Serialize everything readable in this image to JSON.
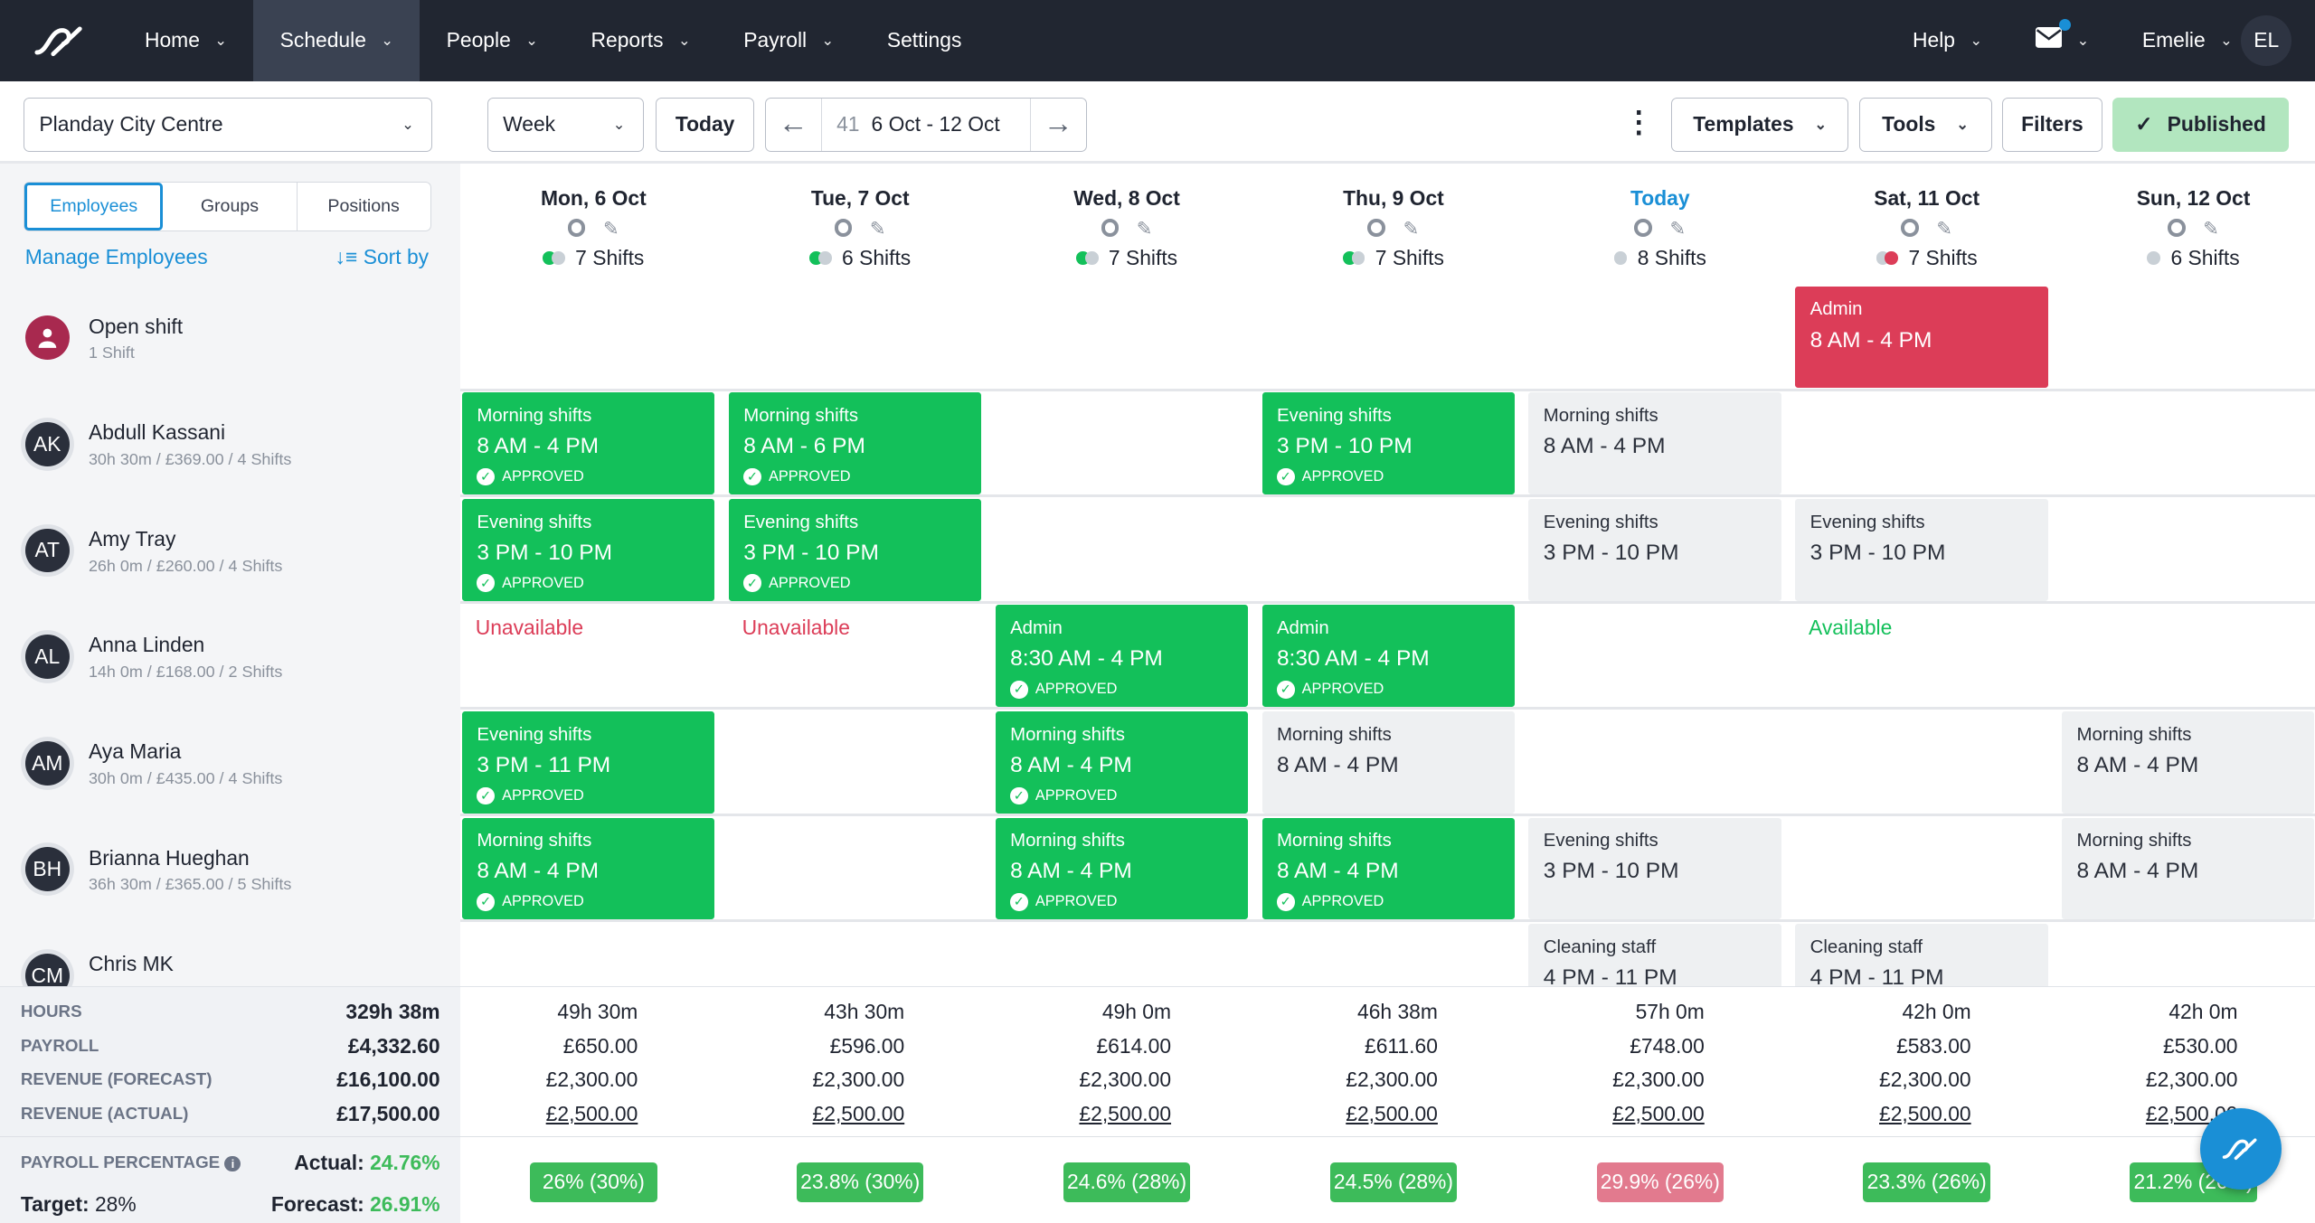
{
  "nav": {
    "items": [
      {
        "label": "Home"
      },
      {
        "label": "Schedule",
        "active": true
      },
      {
        "label": "People"
      },
      {
        "label": "Reports"
      },
      {
        "label": "Payroll"
      },
      {
        "label": "Settings"
      }
    ],
    "help": "Help",
    "user": "Emelie",
    "initials": "EL"
  },
  "toolbar": {
    "location": "Planday City Centre",
    "view": "Week",
    "today": "Today",
    "week_number": "41",
    "range": "6 Oct - 12 Oct",
    "templates": "Templates",
    "tools": "Tools",
    "filters": "Filters",
    "published": "Published"
  },
  "sidebar": {
    "tabs": [
      "Employees",
      "Groups",
      "Positions"
    ],
    "manage": "Manage Employees",
    "sort": "Sort by"
  },
  "colors": {
    "approved": "#13c05a",
    "open": "#dc3d58",
    "accent": "#1a8fd6",
    "nav": "#212631",
    "published": "#b2e6bf"
  },
  "days": [
    {
      "label": "Mon, 6 Oct",
      "shifts": "7 Shifts",
      "dots": [
        "#13c05a",
        "#c9d0d6"
      ]
    },
    {
      "label": "Tue, 7 Oct",
      "shifts": "6 Shifts",
      "dots": [
        "#13c05a",
        "#c9d0d6"
      ]
    },
    {
      "label": "Wed, 8 Oct",
      "shifts": "7 Shifts",
      "dots": [
        "#13c05a",
        "#c9d0d6"
      ]
    },
    {
      "label": "Thu, 9 Oct",
      "shifts": "7 Shifts",
      "dots": [
        "#13c05a",
        "#c9d0d6"
      ]
    },
    {
      "label": "Today",
      "shifts": "8 Shifts",
      "dots": [
        "#c9d0d6"
      ],
      "today": true
    },
    {
      "label": "Sat, 11 Oct",
      "shifts": "7 Shifts",
      "dots": [
        "#c9d0d6",
        "#dc3d58"
      ]
    },
    {
      "label": "Sun, 12 Oct",
      "shifts": "6 Shifts",
      "dots": [
        "#c9d0d6"
      ]
    }
  ],
  "approved_label": "APPROVED",
  "rows": [
    {
      "name": "Open shift",
      "sub": "1 Shift",
      "open": true,
      "cells": [
        null,
        null,
        null,
        null,
        null,
        {
          "type": "red",
          "title": "Admin",
          "time": "8 AM  - 4 PM"
        },
        null
      ]
    },
    {
      "name": "Abdull Kassani",
      "initials": "AK",
      "sub": "30h 30m / £369.00 / 4 Shifts",
      "cells": [
        {
          "type": "approved",
          "title": "Morning shifts",
          "time": "8 AM  - 4 PM"
        },
        {
          "type": "approved",
          "title": "Morning shifts",
          "time": "8 AM  - 6 PM"
        },
        null,
        {
          "type": "approved",
          "title": "Evening shifts",
          "time": "3 PM  - 10 PM"
        },
        {
          "type": "plain",
          "title": "Morning shifts",
          "time": "8 AM  - 4 PM"
        },
        null,
        null
      ]
    },
    {
      "name": "Amy Tray",
      "initials": "AT",
      "sub": "26h 0m / £260.00 / 4 Shifts",
      "cells": [
        {
          "type": "approved",
          "title": "Evening shifts",
          "time": "3 PM  - 10 PM"
        },
        {
          "type": "approved",
          "title": "Evening shifts",
          "time": "3 PM  - 10 PM"
        },
        null,
        null,
        {
          "type": "plain",
          "title": "Evening shifts",
          "time": "3 PM  - 10 PM"
        },
        {
          "type": "plain",
          "title": "Evening shifts",
          "time": "3 PM  - 10 PM"
        },
        null
      ]
    },
    {
      "name": "Anna Linden",
      "initials": "AL",
      "sub": "14h 0m / £168.00 / 2 Shifts",
      "cells": [
        {
          "type": "unavailable",
          "title": "Unavailable"
        },
        {
          "type": "unavailable",
          "title": "Unavailable"
        },
        {
          "type": "approved",
          "title": "Admin",
          "time": "8:30 AM  - 4 PM"
        },
        {
          "type": "approved",
          "title": "Admin",
          "time": "8:30 AM  - 4 PM"
        },
        null,
        {
          "type": "available",
          "title": "Available"
        },
        null
      ]
    },
    {
      "name": "Aya Maria",
      "initials": "AM",
      "sub": "30h 0m / £435.00 / 4 Shifts",
      "cells": [
        {
          "type": "approved",
          "title": "Evening shifts",
          "time": "3 PM  - 11 PM"
        },
        null,
        {
          "type": "approved",
          "title": "Morning shifts",
          "time": "8 AM  - 4 PM"
        },
        {
          "type": "plain",
          "title": "Morning shifts",
          "time": "8 AM  - 4 PM"
        },
        null,
        null,
        {
          "type": "plain",
          "title": "Morning shifts",
          "time": "8 AM  - 4 PM"
        }
      ]
    },
    {
      "name": "Brianna Hueghan",
      "initials": "BH",
      "sub": "36h 30m / £365.00 / 5 Shifts",
      "cells": [
        {
          "type": "approved",
          "title": "Morning shifts",
          "time": "8 AM  - 4 PM"
        },
        null,
        {
          "type": "approved",
          "title": "Morning shifts",
          "time": "8 AM  - 4 PM"
        },
        {
          "type": "approved",
          "title": "Morning shifts",
          "time": "8 AM  - 4 PM"
        },
        {
          "type": "plain",
          "title": "Evening shifts",
          "time": "3 PM  - 10 PM"
        },
        null,
        {
          "type": "plain",
          "title": "Morning shifts",
          "time": "8 AM  - 4 PM"
        }
      ]
    },
    {
      "name": "Chris MK",
      "initials": "CM",
      "sub": "",
      "cells": [
        null,
        null,
        null,
        null,
        {
          "type": "plain",
          "title": "Cleaning staff",
          "time": "4 PM  - 11 PM"
        },
        {
          "type": "plain",
          "title": "Cleaning staff",
          "time": "4 PM  - 11 PM"
        },
        null
      ]
    }
  ],
  "footer": {
    "labels": {
      "hours": "HOURS",
      "payroll": "PAYROLL",
      "rev_forecast": "REVENUE (FORECAST)",
      "rev_actual": "REVENUE (ACTUAL)",
      "pct": "PAYROLL PERCENTAGE",
      "actual": "Actual:",
      "target": "Target:",
      "forecast": "Forecast:"
    },
    "totals": {
      "hours": "329h 38m",
      "payroll": "£4,332.60",
      "rev_forecast": "£16,100.00",
      "rev_actual": "£17,500.00",
      "actual": "24.76%",
      "target": "28%",
      "forecast": "26.91%"
    },
    "days": [
      {
        "hours": "49h 30m",
        "payroll": "£650.00",
        "rev_forecast": "£2,300.00",
        "rev_actual": "£2,500.00",
        "pct": "26% (30%)",
        "status": "good"
      },
      {
        "hours": "43h 30m",
        "payroll": "£596.00",
        "rev_forecast": "£2,300.00",
        "rev_actual": "£2,500.00",
        "pct": "23.8% (30%)",
        "status": "good"
      },
      {
        "hours": "49h 0m",
        "payroll": "£614.00",
        "rev_forecast": "£2,300.00",
        "rev_actual": "£2,500.00",
        "pct": "24.6% (28%)",
        "status": "good"
      },
      {
        "hours": "46h 38m",
        "payroll": "£611.60",
        "rev_forecast": "£2,300.00",
        "rev_actual": "£2,500.00",
        "pct": "24.5% (28%)",
        "status": "good"
      },
      {
        "hours": "57h 0m",
        "payroll": "£748.00",
        "rev_forecast": "£2,300.00",
        "rev_actual": "£2,500.00",
        "pct": "29.9% (26%)",
        "status": "bad"
      },
      {
        "hours": "42h 0m",
        "payroll": "£583.00",
        "rev_forecast": "£2,300.00",
        "rev_actual": "£2,500.00",
        "pct": "23.3% (26%)",
        "status": "good"
      },
      {
        "hours": "42h 0m",
        "payroll": "£530.00",
        "rev_forecast": "£2,300.00",
        "rev_actual": "£2,500.00",
        "pct": "21.2% (26%)",
        "status": "good"
      }
    ]
  }
}
